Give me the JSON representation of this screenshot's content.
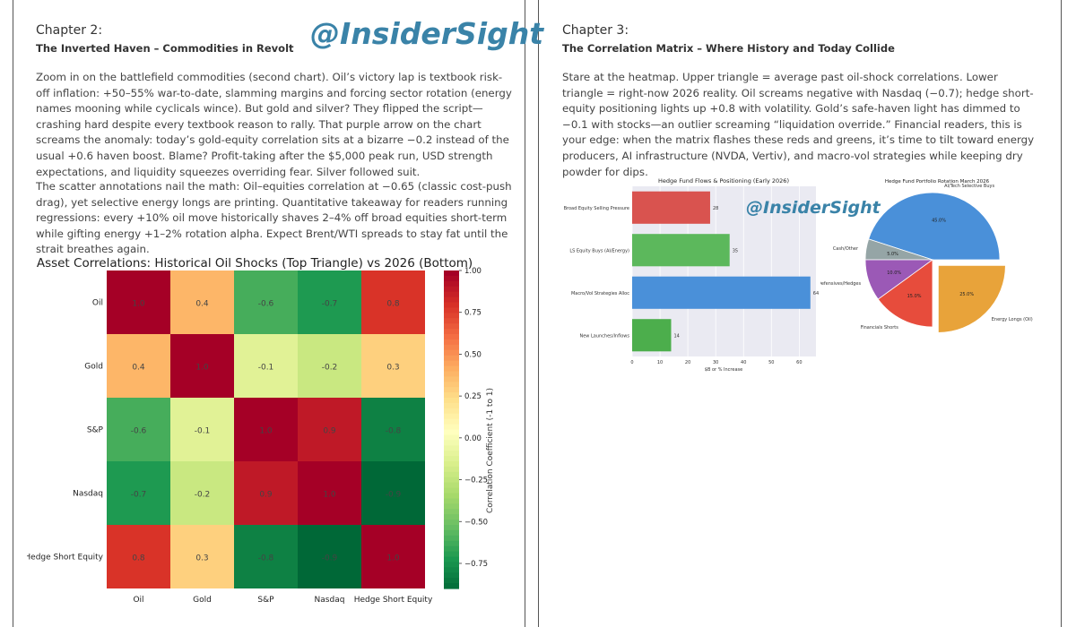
{
  "left": {
    "chapter": "Chapter 2:",
    "subtitle": "The Inverted Haven – Commodities in Revolt",
    "watermark": "@InsiderSight",
    "paragraph1": "Zoom in on the battlefield commodities (second chart). Oil’s victory lap is textbook risk-off inflation: +50–55% war-to-date, slamming margins and forcing sector rotation (energy names mooning while cyclicals wince). But gold and silver? They flipped the script—crashing hard despite every textbook reason to rally. That purple arrow on the chart screams the anomaly: today’s gold-equity correlation sits at a bizarre −0.2 instead of the usual +0.6 haven boost. Blame? Profit-taking after the $5,000 peak run, USD strength expectations, and liquidity squeezes overriding fear. Silver followed suit.",
    "paragraph2": "The scatter annotations nail the math: Oil–equities correlation at −0.65 (classic cost-push drag), yet selective energy longs are printing. Quantitative takeaway for readers running regressions: every +10% oil move historically shaves 2–4% off broad equities short-term while gifting energy +1–2% rotation alpha. Expect Brent/WTI spreads to stay fat until the strait breathes again."
  },
  "right": {
    "chapter": "Chapter 3:",
    "subtitle": "The Correlation Matrix – Where History and Today Collide",
    "watermark": "@InsiderSight",
    "paragraph": "Stare at the heatmap. Upper triangle = average past oil-shock correlations. Lower triangle = right-now 2026 reality. Oil screams negative with Nasdaq (−0.7); hedge short-equity positioning lights up +0.8 with volatility. Gold’s safe-haven light has dimmed to −0.1 with stocks—an outlier screaming “liquidation override.” Financial readers, this is your edge: when the matrix flashes these reds and greens, it’s time to tilt toward energy producers, AI infrastructure (NVDA, Vertiv), and macro-vol strategies while keeping dry powder for dips."
  },
  "chart_data": [
    {
      "type": "heatmap",
      "title": "Asset Correlations: Historical Oil Shocks (Top Triangle) vs 2026 (Bottom)",
      "rows": [
        "Oil",
        "Gold",
        "S&P",
        "Nasdaq",
        "Hedge Short Equity"
      ],
      "cols": [
        "Oil",
        "Gold",
        "S&P",
        "Nasdaq",
        "Hedge Short Equity"
      ],
      "values": [
        [
          1.0,
          0.4,
          -0.6,
          -0.7,
          0.8
        ],
        [
          0.4,
          1.0,
          -0.1,
          -0.2,
          0.3
        ],
        [
          -0.6,
          -0.1,
          1.0,
          0.9,
          -0.8
        ],
        [
          -0.7,
          -0.2,
          0.9,
          1.0,
          -0.9
        ],
        [
          0.8,
          0.3,
          -0.8,
          -0.9,
          1.0
        ]
      ],
      "colorbar_label": "Correlation Coefficient (-1 to 1)",
      "colorbar_ticks": [
        1.0,
        0.75,
        0.5,
        0.25,
        0.0,
        -0.25,
        -0.5,
        -0.75
      ],
      "colorbar_tick_labels": [
        "1.00",
        "0.75",
        "0.50",
        "0.25",
        "0.00",
        "−0.25",
        "−0.50",
        "−0.75"
      ],
      "colormap": "RdYlGn_reversed",
      "vrange": [
        -0.9,
        1.0
      ]
    },
    {
      "type": "bar",
      "orientation": "horizontal",
      "title": "Hedge Fund Flows & Positioning (Early 2026)",
      "categories": [
        "Broad Equity Selling Pressure",
        "LS Equity Buys (AI/Energy)",
        "Macro/Vol Strategies Alloc",
        "New Launches/Inflows"
      ],
      "values": [
        28,
        35,
        64,
        14
      ],
      "colors": [
        "#d9534f",
        "#5cb85c",
        "#4a90d9",
        "#4cae4c"
      ],
      "xlabel": "$B or % Increase",
      "xticks": [
        0,
        10,
        20,
        30,
        40,
        50,
        60
      ],
      "xlim": [
        0,
        66
      ]
    },
    {
      "type": "pie",
      "title": "Hedge Fund Portfolio Rotation March 2026",
      "labels": [
        "AI/Tech Selective Buys",
        "Cash/Other",
        "Defensives/Hedges",
        "Financials Shorts",
        "Energy Longs (Oil)"
      ],
      "values": [
        45.0,
        5.0,
        10.0,
        15.0,
        25.0
      ],
      "pct_labels": [
        "45.0%",
        "5.0%",
        "10.0%",
        "15.0%",
        "25.0%"
      ],
      "colors": [
        "#4a90d9",
        "#95a5a6",
        "#9b59b6",
        "#e74c3c",
        "#e8a33a"
      ],
      "explode": [
        0,
        0,
        0,
        0,
        1
      ]
    }
  ]
}
